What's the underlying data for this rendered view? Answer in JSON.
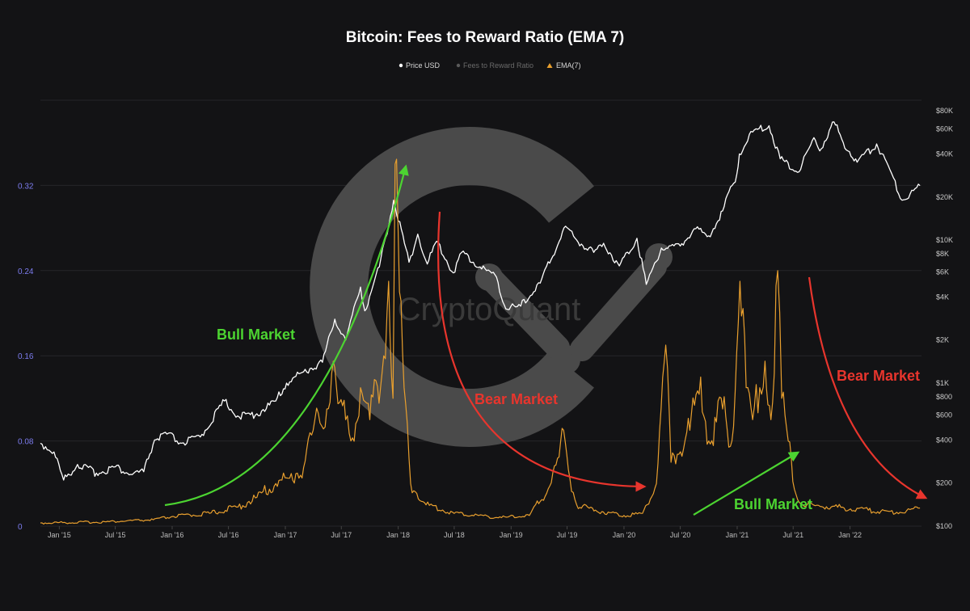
{
  "chart_data": {
    "type": "line",
    "title": "Bitcoin: Fees to Reward Ratio (EMA 7)",
    "legend": [
      {
        "label": "Price USD",
        "color": "#ffffff",
        "marker": "dot"
      },
      {
        "label": "Fees to Reward Ratio",
        "color": "#5a5a5a",
        "marker": "dot"
      },
      {
        "label": "EMA(7)",
        "color": "#e89f2e",
        "marker": "triangle"
      }
    ],
    "legend_placement": "top-center",
    "watermark": "CryptoQuant",
    "grid": true,
    "x_ticks": [
      "Jan '15",
      "Jul '15",
      "Jan '16",
      "Jul '16",
      "Jan '17",
      "Jul '17",
      "Jan '18",
      "Jul '18",
      "Jan '19",
      "Jul '19",
      "Jan '20",
      "Jul '20",
      "Jan '21",
      "Jul '21",
      "Jan '22"
    ],
    "xlim": [
      "2014-11-01",
      "2022-08-20"
    ],
    "y_left": {
      "ticks": [
        "0",
        "0.08",
        "0.16",
        "0.24",
        "0.32"
      ],
      "ylim": [
        0,
        0.4
      ],
      "color": "#7d7df0"
    },
    "y_right": {
      "scale": "log",
      "ticks": [
        "$80K",
        "$60K",
        "$40K",
        "$20K",
        "$10K",
        "$8K",
        "$6K",
        "$4K",
        "$2K",
        "$1K",
        "$800",
        "$600",
        "$400",
        "$200",
        "$100"
      ],
      "ylim": [
        100,
        95000
      ]
    },
    "series": [
      {
        "name": "Price USD",
        "axis": "right",
        "color": "#ffffff",
        "points": [
          [
            "2014-11-01",
            380
          ],
          [
            "2014-12-15",
            330
          ],
          [
            "2015-01-15",
            210
          ],
          [
            "2015-03-01",
            270
          ],
          [
            "2015-05-01",
            235
          ],
          [
            "2015-07-01",
            260
          ],
          [
            "2015-08-20",
            230
          ],
          [
            "2015-10-01",
            240
          ],
          [
            "2015-11-05",
            400
          ],
          [
            "2015-12-15",
            440
          ],
          [
            "2016-02-01",
            380
          ],
          [
            "2016-04-01",
            420
          ],
          [
            "2016-06-18",
            750
          ],
          [
            "2016-08-05",
            580
          ],
          [
            "2016-10-01",
            610
          ],
          [
            "2016-12-01",
            750
          ],
          [
            "2017-01-05",
            1000
          ],
          [
            "2017-03-01",
            1200
          ],
          [
            "2017-05-01",
            1400
          ],
          [
            "2017-06-10",
            2800
          ],
          [
            "2017-07-15",
            2000
          ],
          [
            "2017-09-01",
            4700
          ],
          [
            "2017-09-15",
            3200
          ],
          [
            "2017-11-01",
            6500
          ],
          [
            "2017-12-17",
            19000
          ],
          [
            "2018-02-05",
            7000
          ],
          [
            "2018-03-05",
            11000
          ],
          [
            "2018-04-05",
            6800
          ],
          [
            "2018-05-05",
            9800
          ],
          [
            "2018-06-28",
            5900
          ],
          [
            "2018-07-25",
            8200
          ],
          [
            "2018-09-01",
            7000
          ],
          [
            "2018-11-15",
            5500
          ],
          [
            "2018-12-15",
            3300
          ],
          [
            "2019-02-01",
            3450
          ],
          [
            "2019-04-05",
            5000
          ],
          [
            "2019-06-26",
            12500
          ],
          [
            "2019-08-01",
            10000
          ],
          [
            "2019-09-25",
            8200
          ],
          [
            "2019-10-27",
            9500
          ],
          [
            "2019-12-17",
            6600
          ],
          [
            "2020-02-12",
            10300
          ],
          [
            "2020-03-13",
            4900
          ],
          [
            "2020-05-01",
            8800
          ],
          [
            "2020-07-01",
            9100
          ],
          [
            "2020-08-15",
            12000
          ],
          [
            "2020-10-01",
            10700
          ],
          [
            "2020-11-15",
            16000
          ],
          [
            "2020-12-31",
            29000
          ],
          [
            "2021-01-08",
            40000
          ],
          [
            "2021-02-20",
            57000
          ],
          [
            "2021-04-14",
            63000
          ],
          [
            "2021-05-20",
            37000
          ],
          [
            "2021-07-20",
            30000
          ],
          [
            "2021-09-06",
            52000
          ],
          [
            "2021-09-25",
            42000
          ],
          [
            "2021-11-10",
            67000
          ],
          [
            "2021-12-10",
            48000
          ],
          [
            "2022-01-24",
            35000
          ],
          [
            "2022-03-28",
            47000
          ],
          [
            "2022-05-10",
            31000
          ],
          [
            "2022-06-18",
            19000
          ],
          [
            "2022-08-15",
            24000
          ]
        ]
      },
      {
        "name": "EMA(7)",
        "axis": "left",
        "color": "#e89f2e",
        "points": [
          [
            "2014-11-01",
            0.003
          ],
          [
            "2015-06-01",
            0.004
          ],
          [
            "2015-11-01",
            0.006
          ],
          [
            "2016-01-01",
            0.009
          ],
          [
            "2016-05-01",
            0.012
          ],
          [
            "2016-08-01",
            0.018
          ],
          [
            "2016-10-01",
            0.027
          ],
          [
            "2016-12-01",
            0.04
          ],
          [
            "2017-01-15",
            0.045
          ],
          [
            "2017-03-01",
            0.055
          ],
          [
            "2017-04-01",
            0.09
          ],
          [
            "2017-05-15",
            0.11
          ],
          [
            "2017-06-05",
            0.155
          ],
          [
            "2017-06-20",
            0.115
          ],
          [
            "2017-07-15",
            0.1
          ],
          [
            "2017-08-01",
            0.08
          ],
          [
            "2017-09-01",
            0.13
          ],
          [
            "2017-10-01",
            0.1
          ],
          [
            "2017-11-15",
            0.16
          ],
          [
            "2017-12-01",
            0.23
          ],
          [
            "2017-12-15",
            0.12
          ],
          [
            "2017-12-22",
            0.34
          ],
          [
            "2018-01-05",
            0.22
          ],
          [
            "2018-01-20",
            0.13
          ],
          [
            "2018-02-10",
            0.04
          ],
          [
            "2018-04-01",
            0.02
          ],
          [
            "2018-07-01",
            0.012
          ],
          [
            "2018-12-01",
            0.008
          ],
          [
            "2019-03-01",
            0.01
          ],
          [
            "2019-05-01",
            0.035
          ],
          [
            "2019-06-05",
            0.065
          ],
          [
            "2019-06-20",
            0.09
          ],
          [
            "2019-07-10",
            0.045
          ],
          [
            "2019-08-01",
            0.02
          ],
          [
            "2019-10-01",
            0.015
          ],
          [
            "2020-01-01",
            0.01
          ],
          [
            "2020-03-01",
            0.012
          ],
          [
            "2020-04-15",
            0.04
          ],
          [
            "2020-05-15",
            0.17
          ],
          [
            "2020-06-01",
            0.06
          ],
          [
            "2020-08-01",
            0.09
          ],
          [
            "2020-09-05",
            0.14
          ],
          [
            "2020-10-01",
            0.08
          ],
          [
            "2020-11-15",
            0.11
          ],
          [
            "2020-12-15",
            0.08
          ],
          [
            "2021-01-10",
            0.23
          ],
          [
            "2021-01-30",
            0.13
          ],
          [
            "2021-02-20",
            0.1
          ],
          [
            "2021-03-15",
            0.13
          ],
          [
            "2021-04-01",
            0.155
          ],
          [
            "2021-04-20",
            0.1
          ],
          [
            "2021-05-12",
            0.24
          ],
          [
            "2021-05-25",
            0.12
          ],
          [
            "2021-06-15",
            0.08
          ],
          [
            "2021-07-10",
            0.03
          ],
          [
            "2021-08-01",
            0.02
          ],
          [
            "2021-11-01",
            0.018
          ],
          [
            "2022-03-01",
            0.015
          ],
          [
            "2022-06-01",
            0.013
          ],
          [
            "2022-08-15",
            0.017
          ]
        ]
      }
    ],
    "annotations": [
      {
        "text": "Bull Market",
        "color": "#4cd431"
      },
      {
        "text": "Bear Market",
        "color": "#e8352d"
      },
      {
        "text": "Bull Market",
        "color": "#4cd431"
      },
      {
        "text": "Bear Market",
        "color": "#e8352d"
      }
    ]
  }
}
